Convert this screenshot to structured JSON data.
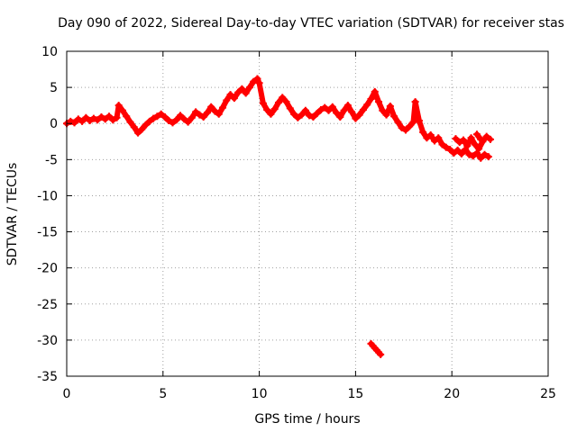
{
  "chart_data": {
    "type": "scatter",
    "title": "Day 090 of 2022, Sidereal Day-to-day VTEC variation (SDTVAR) for receiver stas",
    "xlabel": "GPS time / hours",
    "ylabel": "SDTVAR / TECUs",
    "xlim": [
      0,
      25
    ],
    "ylim": [
      -35,
      10
    ],
    "xticks": [
      0,
      5,
      10,
      15,
      20,
      25
    ],
    "yticks": [
      10,
      5,
      0,
      -5,
      -10,
      -15,
      -20,
      -25,
      -30,
      -35
    ],
    "grid": true,
    "marker": "+",
    "color": "#ff0000",
    "series": [
      {
        "name": "SDTVAR",
        "points": [
          [
            0.0,
            0.0
          ],
          [
            0.2,
            0.3
          ],
          [
            0.4,
            0.1
          ],
          [
            0.6,
            0.6
          ],
          [
            0.8,
            0.3
          ],
          [
            1.0,
            0.8
          ],
          [
            1.2,
            0.4
          ],
          [
            1.4,
            0.7
          ],
          [
            1.6,
            0.5
          ],
          [
            1.8,
            0.9
          ],
          [
            2.0,
            0.6
          ],
          [
            2.2,
            1.0
          ],
          [
            2.4,
            0.5
          ],
          [
            2.6,
            0.8
          ],
          [
            2.7,
            2.5
          ],
          [
            2.9,
            1.8
          ],
          [
            3.1,
            1.0
          ],
          [
            3.3,
            0.2
          ],
          [
            3.5,
            -0.5
          ],
          [
            3.7,
            -1.3
          ],
          [
            3.9,
            -0.8
          ],
          [
            4.1,
            -0.2
          ],
          [
            4.3,
            0.3
          ],
          [
            4.5,
            0.7
          ],
          [
            4.7,
            1.0
          ],
          [
            4.9,
            1.3
          ],
          [
            5.1,
            0.9
          ],
          [
            5.3,
            0.4
          ],
          [
            5.5,
            0.1
          ],
          [
            5.7,
            0.5
          ],
          [
            5.9,
            1.1
          ],
          [
            6.1,
            0.6
          ],
          [
            6.3,
            0.2
          ],
          [
            6.5,
            0.8
          ],
          [
            6.7,
            1.6
          ],
          [
            6.9,
            1.2
          ],
          [
            7.1,
            0.9
          ],
          [
            7.3,
            1.5
          ],
          [
            7.5,
            2.3
          ],
          [
            7.7,
            1.7
          ],
          [
            7.9,
            1.3
          ],
          [
            8.1,
            2.2
          ],
          [
            8.3,
            3.2
          ],
          [
            8.5,
            4.0
          ],
          [
            8.7,
            3.5
          ],
          [
            8.9,
            4.3
          ],
          [
            9.1,
            4.8
          ],
          [
            9.3,
            4.2
          ],
          [
            9.5,
            5.0
          ],
          [
            9.7,
            5.8
          ],
          [
            9.9,
            6.2
          ],
          [
            10.0,
            5.6
          ],
          [
            10.2,
            2.8
          ],
          [
            10.4,
            1.9
          ],
          [
            10.6,
            1.3
          ],
          [
            10.8,
            2.0
          ],
          [
            11.0,
            2.9
          ],
          [
            11.2,
            3.6
          ],
          [
            11.4,
            3.0
          ],
          [
            11.6,
            2.1
          ],
          [
            11.8,
            1.3
          ],
          [
            12.0,
            0.8
          ],
          [
            12.2,
            1.2
          ],
          [
            12.4,
            1.8
          ],
          [
            12.6,
            1.1
          ],
          [
            12.8,
            0.9
          ],
          [
            13.0,
            1.4
          ],
          [
            13.2,
            1.9
          ],
          [
            13.4,
            2.2
          ],
          [
            13.6,
            1.8
          ],
          [
            13.8,
            2.3
          ],
          [
            14.0,
            1.5
          ],
          [
            14.2,
            0.9
          ],
          [
            14.4,
            1.8
          ],
          [
            14.6,
            2.5
          ],
          [
            14.8,
            1.6
          ],
          [
            15.0,
            0.7
          ],
          [
            15.2,
            1.2
          ],
          [
            15.4,
            1.9
          ],
          [
            15.6,
            2.6
          ],
          [
            15.8,
            3.4
          ],
          [
            16.0,
            4.4
          ],
          [
            16.2,
            3.0
          ],
          [
            16.4,
            1.8
          ],
          [
            16.6,
            1.2
          ],
          [
            16.8,
            2.4
          ],
          [
            17.0,
            1.0
          ],
          [
            17.2,
            0.2
          ],
          [
            17.4,
            -0.6
          ],
          [
            17.6,
            -0.9
          ],
          [
            17.8,
            -0.4
          ],
          [
            18.0,
            0.2
          ],
          [
            18.1,
            3.0
          ],
          [
            18.3,
            0.4
          ],
          [
            18.5,
            -1.2
          ],
          [
            18.7,
            -2.0
          ],
          [
            18.9,
            -1.6
          ],
          [
            19.1,
            -2.4
          ],
          [
            19.3,
            -2.0
          ],
          [
            19.5,
            -2.9
          ],
          [
            19.7,
            -3.3
          ],
          [
            19.9,
            -3.6
          ],
          [
            20.1,
            -4.1
          ],
          [
            20.3,
            -3.7
          ],
          [
            20.5,
            -4.2
          ],
          [
            20.7,
            -3.6
          ],
          [
            20.9,
            -4.3
          ],
          [
            21.1,
            -4.5
          ],
          [
            21.3,
            -4.1
          ],
          [
            21.5,
            -4.8
          ],
          [
            21.7,
            -4.3
          ],
          [
            21.9,
            -4.6
          ],
          [
            20.2,
            -2.1
          ],
          [
            20.4,
            -2.6
          ],
          [
            20.6,
            -2.3
          ],
          [
            20.8,
            -3.1
          ],
          [
            21.0,
            -2.0
          ],
          [
            21.2,
            -2.9
          ],
          [
            21.4,
            -3.5
          ],
          [
            21.6,
            -2.5
          ],
          [
            21.8,
            -1.8
          ],
          [
            22.0,
            -2.2
          ],
          [
            21.3,
            -1.5
          ],
          [
            21.5,
            -2.2
          ],
          [
            15.8,
            -30.5
          ],
          [
            15.9,
            -30.8
          ],
          [
            16.0,
            -31.1
          ],
          [
            16.1,
            -31.4
          ],
          [
            16.2,
            -31.7
          ],
          [
            16.3,
            -32.0
          ]
        ]
      }
    ]
  }
}
